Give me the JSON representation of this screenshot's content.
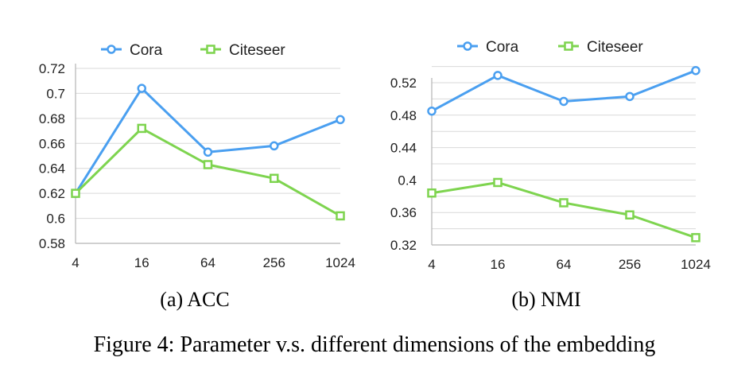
{
  "figure_caption": "Figure 4: Parameter v.s. different dimensions of the embedding",
  "colors": {
    "Cora": "#4a9ff0",
    "Citeseer": "#7ed44f",
    "grid": "#d9d9d9",
    "axis": "#b5b5b5"
  },
  "chart_data": [
    {
      "type": "line",
      "caption": "(a)  ACC",
      "categories": [
        "4",
        "16",
        "64",
        "256",
        "1024"
      ],
      "yticks": [
        "0.72",
        "0.7",
        "0.68",
        "0.66",
        "0.64",
        "0.62",
        "0.6",
        "0.58"
      ],
      "ylim": [
        0.58,
        0.72
      ],
      "grid": true,
      "legend_position": "top",
      "series": [
        {
          "name": "Cora",
          "marker": "circle",
          "values": [
            0.62,
            0.704,
            0.653,
            0.658,
            0.679
          ]
        },
        {
          "name": "Citeseer",
          "marker": "square",
          "values": [
            0.62,
            0.672,
            0.643,
            0.632,
            0.602
          ]
        }
      ]
    },
    {
      "type": "line",
      "caption": "(b)  NMI",
      "categories": [
        "4",
        "16",
        "64",
        "256",
        "1024"
      ],
      "yticks": [
        "0.52",
        "0.48",
        "0.44",
        "0.4",
        "0.36",
        "0.32"
      ],
      "ylim": [
        0.32,
        0.52
      ],
      "grid": true,
      "legend_position": "top",
      "series": [
        {
          "name": "Cora",
          "marker": "circle",
          "values": [
            0.485,
            0.529,
            0.497,
            0.503,
            0.535
          ]
        },
        {
          "name": "Citeseer",
          "marker": "square",
          "values": [
            0.384,
            0.397,
            0.372,
            0.357,
            0.329
          ]
        }
      ]
    }
  ]
}
